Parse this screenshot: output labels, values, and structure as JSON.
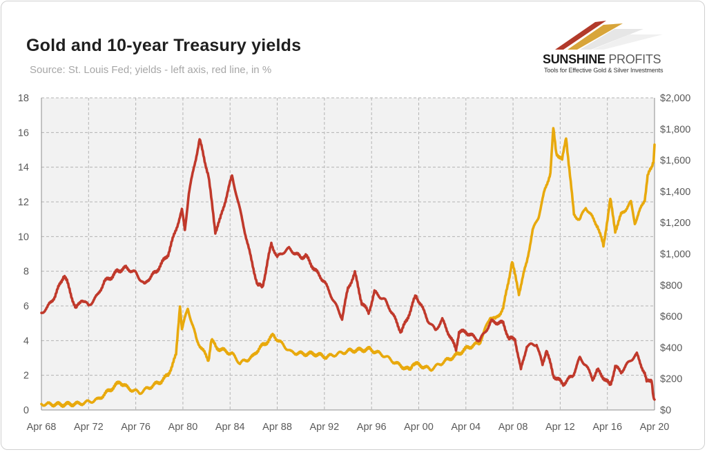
{
  "header": {
    "title": "Gold and 10-year Treasury yields",
    "subtitle": "Source: St. Louis Fed; yields - left axis, red line, in %"
  },
  "logo": {
    "name_bold": "SUNSHINE",
    "name_light": "PROFITS",
    "tagline": "Tools for Effective Gold & Silver Investments"
  },
  "colors": {
    "yield_line": "#c0392b",
    "gold_line": "#e8a90d",
    "plot_bg": "#f2f2f2",
    "grid": "#b3b3b3"
  },
  "chart_data": {
    "type": "line",
    "title": "Gold and 10-year Treasury yields",
    "x_type": "date",
    "x_range": [
      "1968-04",
      "2020-04"
    ],
    "x_ticks": [
      "Apr 68",
      "Apr 72",
      "Apr 76",
      "Apr 80",
      "Apr 84",
      "Apr 88",
      "Apr 92",
      "Apr 96",
      "Apr 00",
      "Apr 04",
      "Apr 08",
      "Apr 12",
      "Apr 16",
      "Apr 20"
    ],
    "y_left": {
      "ylim": [
        0,
        18
      ],
      "ticks": [
        "0",
        "2",
        "4",
        "6",
        "8",
        "10",
        "12",
        "14",
        "16",
        "18"
      ]
    },
    "y_right": {
      "ylim": [
        0,
        2000
      ],
      "ticks": [
        "$0",
        "$200",
        "$400",
        "$600",
        "$800",
        "$1,000",
        "$1,200",
        "$1,400",
        "$1,600",
        "$1,800",
        "$2,000"
      ]
    },
    "grid": true,
    "series": [
      {
        "axis": "left",
        "x": [
          "1968-04",
          "1968-10",
          "1969-06",
          "1970-03",
          "1970-06",
          "1971-03",
          "1971-09",
          "1972-04",
          "1973-01",
          "1973-08",
          "1974-04",
          "1974-09",
          "1975-06",
          "1976-04",
          "1977-01",
          "1977-04",
          "1978-01",
          "1979-01",
          "1980-03",
          "1980-06",
          "1980-10",
          "1981-09",
          "1982-06",
          "1983-01",
          "1983-06",
          "1984-06",
          "1985-01",
          "1986-01",
          "1986-08",
          "1987-01",
          "1987-10",
          "1988-04",
          "1988-10",
          "1989-04",
          "1990-04",
          "1990-09",
          "1991-06",
          "1992-04",
          "1993-10",
          "1994-04",
          "1994-11",
          "1995-06",
          "1996-01",
          "1996-07",
          "1997-06",
          "1998-01",
          "1998-10",
          "1999-04",
          "2000-01",
          "2000-06",
          "2001-01",
          "2001-09",
          "2002-04",
          "2003-06",
          "2003-09",
          "2004-04",
          "2005-06",
          "2006-06",
          "2007-06",
          "2007-12",
          "2008-06",
          "2008-12",
          "2009-06",
          "2010-04",
          "2010-10",
          "2011-02",
          "2011-09",
          "2012-07",
          "2013-05",
          "2013-12",
          "2014-06",
          "2015-01",
          "2015-06",
          "2016-07",
          "2016-12",
          "2017-06",
          "2018-04",
          "2018-10",
          "2019-06",
          "2019-08",
          "2020-01",
          "2020-03",
          "2020-04"
        ],
        "values": [
          5.6,
          5.9,
          6.6,
          7.8,
          7.4,
          5.8,
          6.4,
          6.0,
          6.6,
          7.4,
          7.7,
          8.0,
          8.2,
          7.9,
          7.2,
          7.5,
          8.0,
          9.0,
          11.5,
          10.4,
          12.5,
          15.6,
          13.5,
          10.3,
          11.0,
          13.5,
          11.8,
          8.8,
          7.2,
          7.1,
          9.6,
          8.8,
          9.1,
          9.3,
          8.8,
          8.9,
          8.1,
          7.4,
          5.3,
          7.0,
          7.9,
          6.2,
          5.6,
          6.8,
          6.3,
          5.6,
          4.5,
          5.2,
          6.6,
          6.1,
          5.2,
          4.6,
          5.2,
          3.5,
          4.5,
          4.5,
          4.0,
          5.1,
          5.0,
          4.1,
          4.1,
          2.3,
          3.7,
          3.8,
          2.6,
          3.5,
          2.0,
          1.5,
          2.0,
          3.0,
          2.6,
          1.8,
          2.3,
          1.4,
          2.5,
          2.2,
          2.9,
          3.2,
          2.1,
          1.6,
          1.8,
          0.7,
          0.6
        ]
      },
      {
        "axis": "right",
        "x": [
          "1968-04",
          "1970-01",
          "1971-06",
          "1972-01",
          "1973-01",
          "1973-08",
          "1974-06",
          "1974-12",
          "1975-08",
          "1976-08",
          "1977-06",
          "1978-06",
          "1979-01",
          "1979-09",
          "1980-01",
          "1980-03",
          "1980-09",
          "1981-06",
          "1982-06",
          "1982-09",
          "1983-02",
          "1984-06",
          "1985-02",
          "1986-03",
          "1986-10",
          "1987-03",
          "1987-12",
          "1988-06",
          "1989-06",
          "1990-06",
          "1991-06",
          "1992-06",
          "1993-06",
          "1994-06",
          "1995-06",
          "1996-02",
          "1997-06",
          "1998-06",
          "1999-07",
          "1999-10",
          "2000-06",
          "2001-04",
          "2002-06",
          "2003-06",
          "2004-06",
          "2005-06",
          "2006-05",
          "2006-10",
          "2007-06",
          "2008-03",
          "2008-10",
          "2009-06",
          "2009-12",
          "2010-06",
          "2010-12",
          "2011-06",
          "2011-09",
          "2011-12",
          "2012-06",
          "2012-10",
          "2013-06",
          "2013-12",
          "2014-06",
          "2015-06",
          "2015-12",
          "2016-07",
          "2016-12",
          "2017-06",
          "2018-04",
          "2018-08",
          "2019-06",
          "2019-09",
          "2020-01",
          "2020-03",
          "2020-04"
        ],
        "values": [
          38,
          35,
          40,
          48,
          65,
          100,
          150,
          180,
          140,
          110,
          145,
          185,
          225,
          350,
          675,
          520,
          650,
          450,
          320,
          450,
          400,
          360,
          300,
          340,
          400,
          420,
          480,
          440,
          370,
          360,
          360,
          340,
          360,
          380,
          385,
          390,
          345,
          295,
          255,
          300,
          285,
          260,
          310,
          350,
          400,
          430,
          600,
          580,
          650,
          950,
          750,
          950,
          1150,
          1240,
          1400,
          1520,
          1800,
          1650,
          1600,
          1750,
          1250,
          1220,
          1300,
          1180,
          1050,
          1350,
          1150,
          1250,
          1330,
          1200,
          1350,
          1500,
          1550,
          1600,
          1700
        ]
      }
    ]
  }
}
